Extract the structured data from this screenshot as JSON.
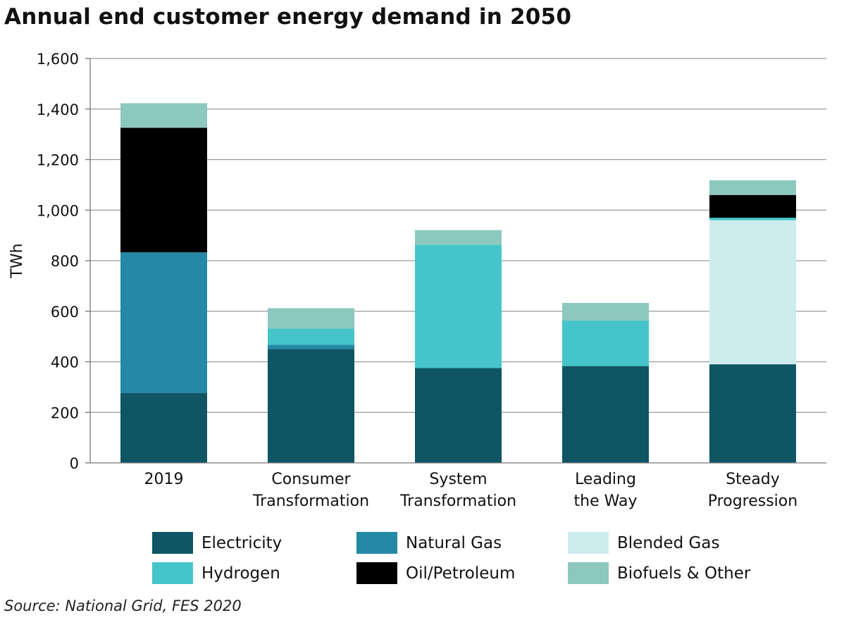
{
  "chart_data": {
    "type": "bar",
    "stacked": true,
    "title": "Annual end customer energy demand in 2050",
    "ylabel": "TWh",
    "xlabel": "",
    "ylim": [
      0,
      1600
    ],
    "yticks": [
      0,
      200,
      400,
      600,
      800,
      1000,
      1200,
      1400,
      1600
    ],
    "ytick_labels": [
      "0",
      "200",
      "400",
      "600",
      "800",
      "1,000",
      "1,200",
      "1,400",
      "1,600"
    ],
    "grid": "horizontal",
    "legend_position": "bottom",
    "categories": [
      [
        "2019"
      ],
      [
        "Consumer",
        "Transformation"
      ],
      [
        "System",
        "Transformation"
      ],
      [
        "Leading",
        "the Way"
      ],
      [
        "Steady",
        "Progression"
      ]
    ],
    "series": [
      {
        "name": "Electricity",
        "color": "#0f5564",
        "values": [
          277,
          450,
          375,
          383,
          390
        ]
      },
      {
        "name": "Natural Gas",
        "color": "#2389a5",
        "values": [
          556,
          17,
          0,
          0,
          0
        ]
      },
      {
        "name": "Blended Gas",
        "color": "#cdecee",
        "values": [
          0,
          0,
          0,
          0,
          570
        ]
      },
      {
        "name": "Hydrogen",
        "color": "#45c5ca",
        "values": [
          0,
          65,
          488,
          180,
          10
        ]
      },
      {
        "name": "Oil/Petroleum",
        "color": "#000000",
        "values": [
          493,
          0,
          0,
          0,
          90
        ]
      },
      {
        "name": "Biofuels & Other",
        "color": "#8dc8bf",
        "values": [
          97,
          80,
          58,
          70,
          58
        ]
      }
    ],
    "legend_order": [
      "Electricity",
      "Natural Gas",
      "Blended Gas",
      "Hydrogen",
      "Oil/Petroleum",
      "Biofuels & Other"
    ],
    "source": "Source: National Grid, FES 2020"
  }
}
